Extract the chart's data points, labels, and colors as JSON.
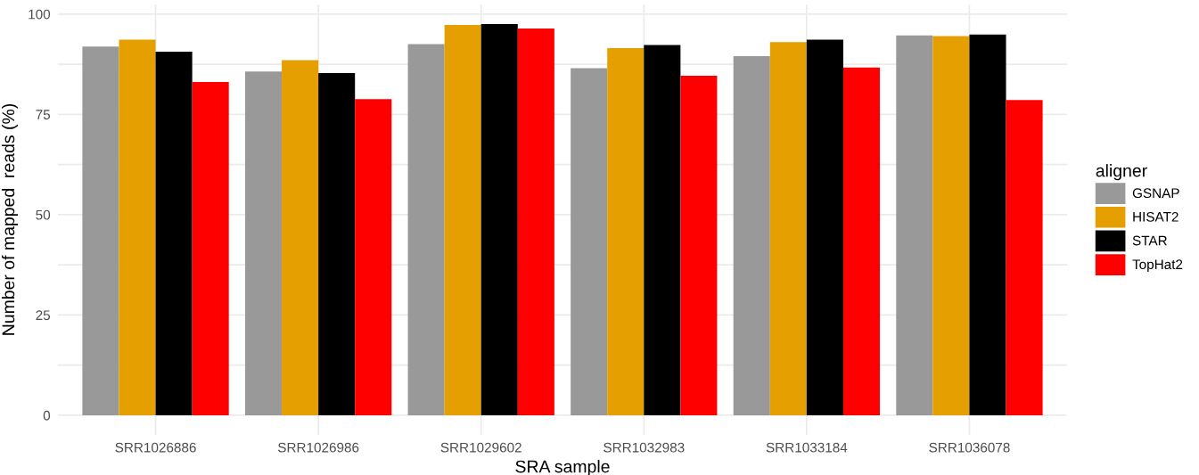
{
  "chart_data": {
    "type": "bar",
    "xlabel": "SRA sample",
    "ylabel": "Number of mapped  reads (%)",
    "legend_title": "aligner",
    "categories": [
      "SRR1026886",
      "SRR1026986",
      "SRR1029602",
      "SRR1032983",
      "SRR1033184",
      "SRR1036078"
    ],
    "series": [
      {
        "name": "GSNAP",
        "color": "#999999",
        "values": [
          91.9,
          85.7,
          92.5,
          86.5,
          89.5,
          94.7
        ]
      },
      {
        "name": "HISAT2",
        "color": "#e69f00",
        "values": [
          93.6,
          88.5,
          97.3,
          91.5,
          93.0,
          94.5
        ]
      },
      {
        "name": "STAR",
        "color": "#000000",
        "values": [
          90.6,
          85.3,
          97.5,
          92.3,
          93.6,
          94.9
        ]
      },
      {
        "name": "TopHat2",
        "color": "#ff0000",
        "values": [
          83.1,
          78.8,
          96.4,
          84.6,
          86.7,
          78.6
        ]
      }
    ],
    "ylim": [
      -4.9,
      102.4
    ],
    "yticks": [
      0,
      {
        "value": 12.5,
        "label": null
      },
      25,
      {
        "value": 37.5,
        "label": null
      },
      50,
      {
        "value": 62.5,
        "label": null
      },
      75,
      {
        "value": 87.5,
        "label": null
      },
      100
    ],
    "grid": true,
    "legend": "right"
  }
}
